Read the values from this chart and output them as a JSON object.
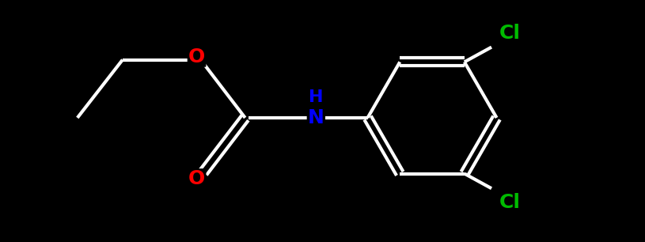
{
  "background_color": "#000000",
  "bond_color": "#ffffff",
  "bond_width": 3.0,
  "atom_colors": {
    "O": "#ff0000",
    "N": "#0000ff",
    "Cl_top": "#00bb00",
    "Cl_bot": "#00bb00",
    "C": "#ffffff"
  },
  "font_size_atoms": 18,
  "fig_width": 8.15,
  "fig_height": 3.06,
  "dpi": 100,
  "xlim": [
    0.0,
    10.0
  ],
  "ylim": [
    0.5,
    4.0
  ]
}
